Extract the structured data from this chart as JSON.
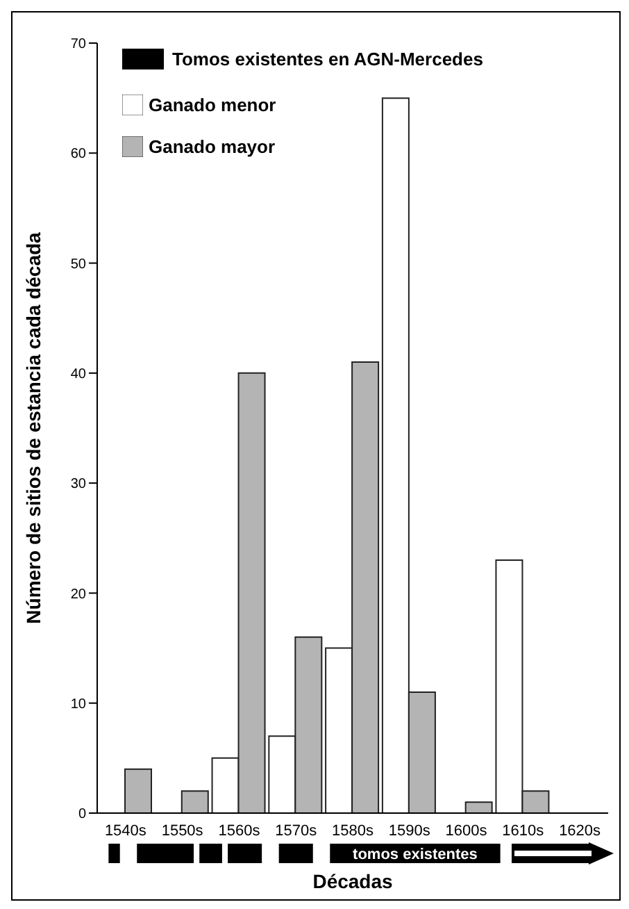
{
  "chart_data": {
    "type": "bar",
    "xlabel": "Décadas",
    "ylabel": "Número de sitios de estancia cada década",
    "categories": [
      "1540s",
      "1550s",
      "1560s",
      "1570s",
      "1580s",
      "1590s",
      "1600s",
      "1610s",
      "1620s"
    ],
    "series": [
      {
        "name": "Ganado menor",
        "color": "#ffffff",
        "values": [
          0,
          0,
          5,
          7,
          15,
          65,
          0,
          23,
          0
        ]
      },
      {
        "name": "Ganado mayor",
        "color": "#b4b4b4",
        "values": [
          4,
          2,
          40,
          16,
          41,
          11,
          1,
          2,
          0
        ]
      }
    ],
    "ylim": [
      0,
      70
    ],
    "yticks": [
      0,
      10,
      20,
      30,
      40,
      50,
      60,
      70
    ],
    "annotations": [
      "Tomos existentes en AGN-Mercedes",
      "tomos existentes"
    ],
    "legend": "top left",
    "grid": false
  }
}
